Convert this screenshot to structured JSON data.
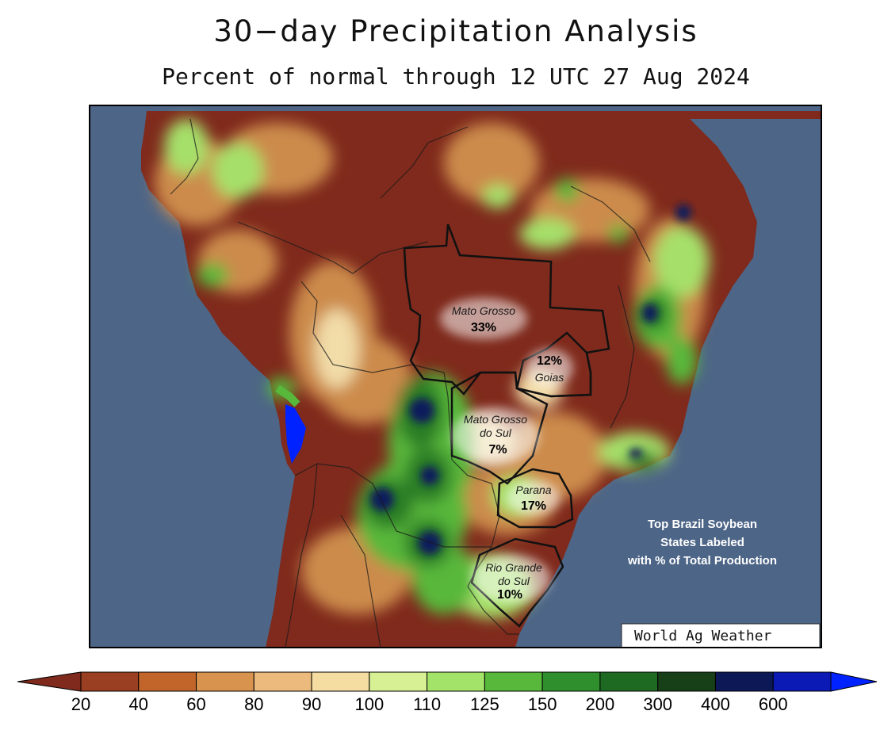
{
  "title": "30−day Precipitation Analysis",
  "subtitle": "Percent of normal through 12 UTC 27 Aug 2024",
  "colors": {
    "ocean": "#4d6587",
    "dry_dark": "#7f2a1c",
    "dry": "#a1451f",
    "tan": "#cc8b4c",
    "light_tan": "#e9c08b",
    "pale": "#f2dca8",
    "light_green": "#a6e06a",
    "green": "#58b83b",
    "dark_green": "#2c7d27",
    "darker_green": "#165318",
    "navy": "#101e5c",
    "blue": "#0c1ab5",
    "bright_blue": "#0022ff"
  },
  "states": [
    {
      "id": "mato-grosso",
      "name": "Mato Grosso",
      "percent": "33%"
    },
    {
      "id": "goias",
      "name": "Goias",
      "percent": "12%"
    },
    {
      "id": "mato-grosso-do-sul",
      "name_line1": "Mato Grosso",
      "name_line2": "do Sul",
      "percent": "7%"
    },
    {
      "id": "parana",
      "name": "Parana",
      "percent": "17%"
    },
    {
      "id": "rio-grande-do-sul",
      "name_line1": "Rio Grande",
      "name_line2": "do Sul",
      "percent": "10%"
    }
  ],
  "note_lines": [
    "Top Brazil Soybean",
    "States Labeled",
    "with % of Total Production"
  ],
  "credit": "World Ag Weather",
  "legend": {
    "ticks": [
      "20",
      "40",
      "60",
      "80",
      "90",
      "100",
      "110",
      "125",
      "150",
      "200",
      "300",
      "400",
      "600"
    ],
    "colors": [
      "#9a3f21",
      "#c2652b",
      "#d8934f",
      "#ebba7c",
      "#f5dda2",
      "#d6f093",
      "#a4e369",
      "#58b83b",
      "#2e8f2c",
      "#1f6a22",
      "#173f18",
      "#0d1957",
      "#0c1ab5"
    ],
    "low_color": "#7f2a1c",
    "high_color": "#0022ff"
  }
}
